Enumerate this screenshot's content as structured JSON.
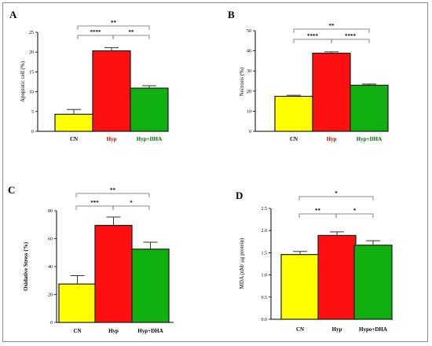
{
  "colors": {
    "CN": "#ffff00",
    "Hyp": "#ff1010",
    "HypDHA": "#10b010",
    "axis": "#000000",
    "bracket": "#6a6a6a"
  },
  "chart_data": [
    {
      "type": "bar",
      "panel": "A",
      "ylabel": "Apoptotic cell (%)",
      "categories": [
        "CN",
        "Hyp",
        "Hyp+DHA"
      ],
      "values": [
        4.3,
        20.3,
        10.9
      ],
      "errors": [
        1.2,
        0.8,
        0.6
      ],
      "ylim": [
        0,
        25
      ],
      "yticks": [
        "0",
        "5",
        "10",
        "15",
        "20",
        "25"
      ],
      "significance": [
        {
          "from": 0,
          "to": 1,
          "label": "****"
        },
        {
          "from": 1,
          "to": 2,
          "label": "**"
        },
        {
          "from": 0,
          "to": 2,
          "label": "**"
        }
      ]
    },
    {
      "type": "bar",
      "panel": "B",
      "ylabel": "Necrosis (%)",
      "categories": [
        "CN",
        "Hyp",
        "Hyp+DHA"
      ],
      "values": [
        17.4,
        38.8,
        22.9
      ],
      "errors": [
        0.5,
        0.7,
        0.6
      ],
      "ylim": [
        0,
        50
      ],
      "yticks": [
        "0",
        "10",
        "20",
        "30",
        "40",
        "50"
      ],
      "significance": [
        {
          "from": 0,
          "to": 1,
          "label": "****"
        },
        {
          "from": 1,
          "to": 2,
          "label": "****"
        },
        {
          "from": 0,
          "to": 2,
          "label": "**"
        }
      ]
    },
    {
      "type": "bar",
      "panel": "C",
      "ylabel": "Oxidative Stress (%)",
      "categories": [
        "CN",
        "Hyp",
        "Hyp+DHA"
      ],
      "values": [
        27.5,
        69.5,
        52.5
      ],
      "errors": [
        6,
        6,
        5
      ],
      "ylim": [
        0,
        80
      ],
      "yticks": [
        "0",
        "20",
        "40",
        "60",
        "80"
      ],
      "significance": [
        {
          "from": 0,
          "to": 1,
          "label": "***"
        },
        {
          "from": 1,
          "to": 2,
          "label": "*"
        },
        {
          "from": 0,
          "to": 2,
          "label": "**"
        }
      ]
    },
    {
      "type": "bar",
      "panel": "D",
      "ylabel": "MDA (nM/ μg protein)",
      "categories": [
        "CN",
        "Hyp",
        "Hypo+DHA"
      ],
      "values": [
        1.46,
        1.89,
        1.67
      ],
      "errors": [
        0.07,
        0.08,
        0.1
      ],
      "ylim": [
        0,
        2.5
      ],
      "yticks": [
        "0.0",
        "0.5",
        "1.0",
        "1.5",
        "2.0",
        "2.5"
      ],
      "significance": [
        {
          "from": 0,
          "to": 1,
          "label": "**"
        },
        {
          "from": 1,
          "to": 2,
          "label": "*"
        },
        {
          "from": 0,
          "to": 2,
          "label": "*"
        }
      ]
    }
  ]
}
